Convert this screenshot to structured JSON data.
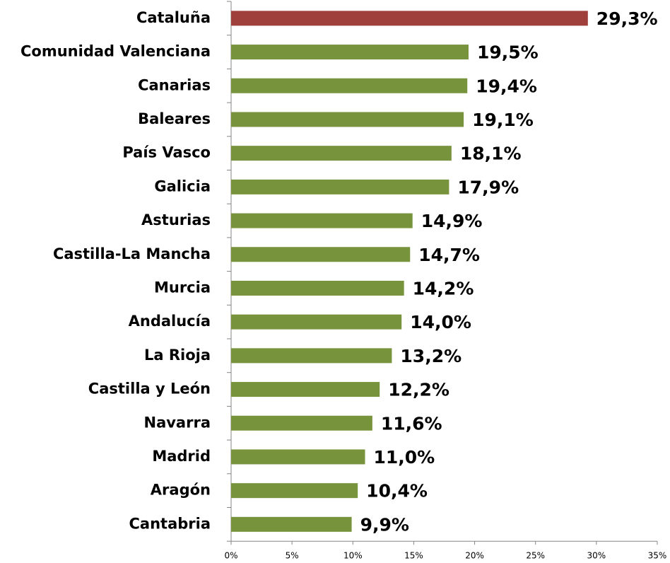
{
  "chart_data": {
    "type": "barh",
    "categories": [
      "Cataluña",
      "Comunidad Valenciana",
      "Canarias",
      "Baleares",
      "País Vasco",
      "Galicia",
      "Asturias",
      "Castilla-La Mancha",
      "Murcia",
      "Andalucía",
      "La Rioja",
      "Castilla y León",
      "Navarra",
      "Madrid",
      "Aragón",
      "Cantabria"
    ],
    "values": [
      29.3,
      19.5,
      19.4,
      19.1,
      18.1,
      17.9,
      14.9,
      14.7,
      14.2,
      14.0,
      13.2,
      12.2,
      11.6,
      11.0,
      10.4,
      9.9
    ],
    "value_labels": [
      "29,3%",
      "19,5%",
      "19,4%",
      "19,1%",
      "18,1%",
      "17,9%",
      "14,9%",
      "14,7%",
      "14,2%",
      "14,0%",
      "13,2%",
      "12,2%",
      "11,6%",
      "11,0%",
      "10,4%",
      "9,9%"
    ],
    "colors": [
      "#a0403c",
      "#77933c",
      "#77933c",
      "#77933c",
      "#77933c",
      "#77933c",
      "#77933c",
      "#77933c",
      "#77933c",
      "#77933c",
      "#77933c",
      "#77933c",
      "#77933c",
      "#77933c",
      "#77933c",
      "#77933c"
    ],
    "xlim": [
      0,
      35
    ],
    "xticks": [
      {
        "value": 0,
        "label": "0%"
      },
      {
        "value": 5,
        "label": "5%"
      },
      {
        "value": 10,
        "label": "10%"
      },
      {
        "value": 15,
        "label": "15%"
      },
      {
        "value": 20,
        "label": "20%"
      },
      {
        "value": 25,
        "label": "25%"
      },
      {
        "value": 30,
        "label": "30%"
      },
      {
        "value": 35,
        "label": "35%"
      }
    ]
  }
}
